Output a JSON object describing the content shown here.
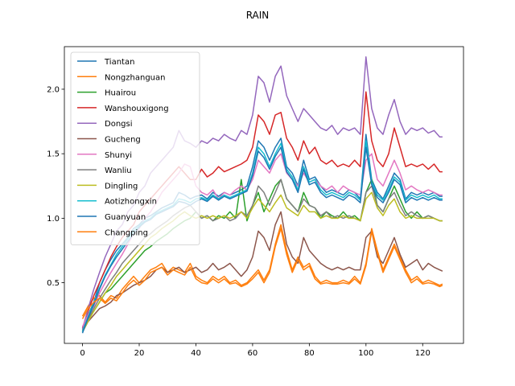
{
  "chart_data": {
    "type": "line",
    "title": "RAIN",
    "xlabel": "",
    "ylabel": "",
    "xlim": [
      -6.4,
      134.4
    ],
    "ylim": [
      0.03,
      2.33
    ],
    "x_ticks": [
      0,
      20,
      40,
      60,
      80,
      100,
      120
    ],
    "y_ticks": [
      0.5,
      1.0,
      1.5,
      2.0
    ],
    "x_tick_labels": [
      "0",
      "20",
      "40",
      "60",
      "80",
      "100",
      "120"
    ],
    "y_tick_labels": [
      "0.5",
      "1.0",
      "1.5",
      "2.0"
    ],
    "grid": false,
    "legend_position": "upper-left",
    "x": [
      0,
      2,
      4,
      6,
      8,
      10,
      12,
      14,
      16,
      18,
      20,
      22,
      24,
      26,
      28,
      30,
      32,
      34,
      36,
      38,
      40,
      42,
      44,
      46,
      48,
      50,
      52,
      54,
      56,
      58,
      60,
      62,
      64,
      66,
      68,
      70,
      72,
      74,
      76,
      78,
      80,
      82,
      84,
      86,
      88,
      90,
      92,
      94,
      96,
      98,
      100,
      102,
      104,
      106,
      108,
      110,
      112,
      114,
      116,
      118,
      120,
      122,
      124,
      126,
      127
    ],
    "series": [
      {
        "name": "Tiantan",
        "color": "#1f77b4",
        "values": [
          0.12,
          0.25,
          0.35,
          0.5,
          0.6,
          0.68,
          0.75,
          0.8,
          0.85,
          0.92,
          0.95,
          1.0,
          1.02,
          1.05,
          1.08,
          1.1,
          1.12,
          1.2,
          1.18,
          1.15,
          1.17,
          1.18,
          1.15,
          1.2,
          1.17,
          1.2,
          1.18,
          1.2,
          1.22,
          1.25,
          1.4,
          1.6,
          1.55,
          1.45,
          1.55,
          1.62,
          1.4,
          1.35,
          1.25,
          1.45,
          1.3,
          1.32,
          1.25,
          1.2,
          1.22,
          1.2,
          1.18,
          1.22,
          1.2,
          1.15,
          1.65,
          1.3,
          1.2,
          1.15,
          1.25,
          1.35,
          1.3,
          1.15,
          1.2,
          1.18,
          1.2,
          1.18,
          1.2,
          1.17,
          1.17
        ]
      },
      {
        "name": "Nongzhanguan",
        "color": "#ff7f0e",
        "values": [
          0.24,
          0.32,
          0.38,
          0.4,
          0.35,
          0.4,
          0.38,
          0.45,
          0.5,
          0.55,
          0.5,
          0.55,
          0.6,
          0.62,
          0.65,
          0.58,
          0.62,
          0.6,
          0.58,
          0.65,
          0.55,
          0.52,
          0.5,
          0.55,
          0.52,
          0.55,
          0.5,
          0.52,
          0.48,
          0.5,
          0.55,
          0.6,
          0.52,
          0.6,
          0.8,
          0.95,
          0.75,
          0.6,
          0.7,
          0.62,
          0.65,
          0.55,
          0.5,
          0.52,
          0.5,
          0.5,
          0.52,
          0.5,
          0.55,
          0.5,
          0.65,
          0.92,
          0.75,
          0.6,
          0.7,
          0.8,
          0.7,
          0.6,
          0.52,
          0.55,
          0.5,
          0.52,
          0.5,
          0.48,
          0.49
        ]
      },
      {
        "name": "Huairou",
        "color": "#2ca02c",
        "values": [
          0.13,
          0.22,
          0.28,
          0.35,
          0.42,
          0.45,
          0.5,
          0.55,
          0.6,
          0.65,
          0.7,
          0.75,
          0.78,
          0.82,
          0.85,
          0.88,
          0.92,
          0.95,
          0.98,
          1.0,
          1.05,
          1.0,
          1.02,
          0.98,
          1.02,
          1.0,
          1.05,
          1.0,
          1.3,
          0.98,
          1.1,
          1.2,
          1.05,
          1.15,
          1.25,
          1.3,
          1.15,
          1.1,
          1.05,
          1.2,
          1.1,
          1.08,
          1.0,
          1.05,
          1.02,
          1.0,
          1.05,
          1.0,
          1.02,
          0.98,
          1.2,
          1.3,
          1.1,
          1.05,
          1.15,
          1.25,
          1.15,
          1.05,
          1.0,
          1.05,
          1.0,
          1.02,
          1.0,
          0.98,
          0.98
        ]
      },
      {
        "name": "Wanshouxigong",
        "color": "#d62728",
        "values": [
          0.15,
          0.28,
          0.4,
          0.5,
          0.6,
          0.7,
          0.78,
          0.85,
          0.9,
          0.95,
          1.05,
          1.1,
          1.15,
          1.2,
          1.25,
          1.3,
          1.35,
          1.4,
          1.35,
          1.3,
          1.3,
          1.38,
          1.32,
          1.35,
          1.4,
          1.36,
          1.38,
          1.4,
          1.42,
          1.45,
          1.55,
          1.8,
          1.75,
          1.65,
          1.8,
          1.82,
          1.62,
          1.55,
          1.45,
          1.6,
          1.5,
          1.55,
          1.45,
          1.42,
          1.45,
          1.4,
          1.42,
          1.4,
          1.45,
          1.4,
          1.98,
          1.6,
          1.45,
          1.4,
          1.5,
          1.7,
          1.55,
          1.4,
          1.42,
          1.4,
          1.42,
          1.38,
          1.42,
          1.36,
          1.36
        ]
      },
      {
        "name": "Dongsi",
        "color": "#9467bd",
        "values": [
          0.14,
          0.3,
          0.45,
          0.58,
          0.7,
          0.8,
          0.9,
          0.95,
          1.05,
          1.1,
          1.2,
          1.25,
          1.35,
          1.4,
          1.45,
          1.5,
          1.55,
          1.68,
          1.6,
          1.58,
          1.55,
          1.6,
          1.58,
          1.62,
          1.6,
          1.65,
          1.62,
          1.6,
          1.68,
          1.65,
          1.8,
          2.1,
          2.05,
          1.9,
          2.1,
          2.18,
          1.95,
          1.85,
          1.75,
          1.85,
          1.8,
          1.75,
          1.7,
          1.68,
          1.72,
          1.65,
          1.7,
          1.68,
          1.7,
          1.65,
          2.25,
          1.85,
          1.7,
          1.65,
          1.8,
          1.92,
          1.75,
          1.65,
          1.7,
          1.68,
          1.7,
          1.66,
          1.68,
          1.63,
          1.63
        ]
      },
      {
        "name": "Gucheng",
        "color": "#8c564b",
        "values": [
          0.12,
          0.2,
          0.25,
          0.3,
          0.32,
          0.35,
          0.4,
          0.42,
          0.45,
          0.48,
          0.5,
          0.52,
          0.55,
          0.6,
          0.62,
          0.58,
          0.6,
          0.62,
          0.58,
          0.6,
          0.62,
          0.58,
          0.6,
          0.65,
          0.6,
          0.62,
          0.65,
          0.6,
          0.55,
          0.6,
          0.7,
          0.9,
          0.85,
          0.75,
          0.95,
          1.05,
          0.8,
          0.7,
          0.65,
          0.85,
          0.75,
          0.7,
          0.65,
          0.62,
          0.6,
          0.62,
          0.6,
          0.62,
          0.6,
          0.6,
          0.85,
          0.9,
          0.7,
          0.65,
          0.75,
          0.85,
          0.72,
          0.62,
          0.65,
          0.68,
          0.6,
          0.65,
          0.62,
          0.6,
          0.59
        ]
      },
      {
        "name": "Shunyi",
        "color": "#e377c2",
        "values": [
          0.16,
          0.25,
          0.32,
          0.42,
          0.5,
          0.58,
          0.65,
          0.72,
          0.8,
          0.88,
          0.92,
          1.0,
          1.05,
          1.12,
          1.2,
          1.25,
          1.3,
          1.35,
          1.42,
          1.4,
          1.25,
          1.2,
          1.18,
          1.22,
          1.15,
          1.2,
          1.18,
          1.22,
          1.25,
          1.22,
          1.3,
          1.45,
          1.4,
          1.35,
          1.45,
          1.5,
          1.35,
          1.3,
          1.25,
          1.35,
          1.28,
          1.3,
          1.25,
          1.22,
          1.25,
          1.2,
          1.25,
          1.22,
          1.2,
          1.18,
          1.45,
          1.5,
          1.3,
          1.25,
          1.35,
          1.45,
          1.35,
          1.22,
          1.25,
          1.22,
          1.2,
          1.22,
          1.2,
          1.18,
          1.18
        ]
      },
      {
        "name": "Wanliu",
        "color": "#7f7f7f",
        "values": [
          0.13,
          0.22,
          0.3,
          0.38,
          0.45,
          0.52,
          0.58,
          0.65,
          0.7,
          0.75,
          0.8,
          0.85,
          0.88,
          0.92,
          0.95,
          0.98,
          1.02,
          1.05,
          1.08,
          1.1,
          1.05,
          1.0,
          1.02,
          0.98,
          1.0,
          1.02,
          0.98,
          1.0,
          1.05,
          1.02,
          1.1,
          1.25,
          1.2,
          1.1,
          1.2,
          1.3,
          1.15,
          1.1,
          1.05,
          1.15,
          1.1,
          1.08,
          1.02,
          1.05,
          1.0,
          1.02,
          1.0,
          1.02,
          1.0,
          0.98,
          1.2,
          1.25,
          1.1,
          1.05,
          1.15,
          1.2,
          1.1,
          1.02,
          1.05,
          1.02,
          1.0,
          1.02,
          1.0,
          0.98,
          0.98
        ]
      },
      {
        "name": "Dingling",
        "color": "#bcbd22",
        "values": [
          0.12,
          0.2,
          0.28,
          0.35,
          0.42,
          0.48,
          0.55,
          0.6,
          0.65,
          0.7,
          0.75,
          0.8,
          0.85,
          0.88,
          0.92,
          0.95,
          0.98,
          1.02,
          1.05,
          1.02,
          1.0,
          1.02,
          1.0,
          1.02,
          1.0,
          1.02,
          1.0,
          1.02,
          1.05,
          1.0,
          1.08,
          1.15,
          1.1,
          1.05,
          1.12,
          1.18,
          1.08,
          1.05,
          1.02,
          1.1,
          1.05,
          1.05,
          1.0,
          1.02,
          1.0,
          1.0,
          1.02,
          1.0,
          1.0,
          0.98,
          1.15,
          1.2,
          1.08,
          1.02,
          1.1,
          1.15,
          1.05,
          1.0,
          1.02,
          1.0,
          1.0,
          1.0,
          1.0,
          0.98,
          0.98
        ]
      },
      {
        "name": "Aotizhongxin",
        "color": "#17becf",
        "values": [
          0.12,
          0.24,
          0.34,
          0.46,
          0.56,
          0.64,
          0.72,
          0.78,
          0.84,
          0.9,
          0.94,
          0.98,
          1.0,
          1.04,
          1.06,
          1.08,
          1.1,
          1.15,
          1.14,
          1.12,
          1.15,
          1.16,
          1.14,
          1.18,
          1.15,
          1.18,
          1.16,
          1.18,
          1.2,
          1.22,
          1.35,
          1.55,
          1.5,
          1.4,
          1.5,
          1.58,
          1.38,
          1.32,
          1.22,
          1.4,
          1.28,
          1.3,
          1.22,
          1.18,
          1.2,
          1.18,
          1.16,
          1.2,
          1.18,
          1.14,
          1.6,
          1.28,
          1.18,
          1.14,
          1.22,
          1.32,
          1.28,
          1.14,
          1.18,
          1.16,
          1.18,
          1.16,
          1.18,
          1.15,
          1.15
        ]
      },
      {
        "name": "Guanyuan",
        "color": "#1f77b4",
        "values": [
          0.11,
          0.23,
          0.33,
          0.45,
          0.55,
          0.63,
          0.7,
          0.76,
          0.82,
          0.88,
          0.93,
          0.97,
          0.99,
          1.03,
          1.05,
          1.07,
          1.09,
          1.13,
          1.12,
          1.1,
          1.13,
          1.15,
          1.13,
          1.17,
          1.14,
          1.17,
          1.15,
          1.17,
          1.19,
          1.21,
          1.33,
          1.52,
          1.47,
          1.38,
          1.48,
          1.55,
          1.36,
          1.3,
          1.2,
          1.38,
          1.26,
          1.28,
          1.2,
          1.16,
          1.18,
          1.16,
          1.14,
          1.18,
          1.16,
          1.12,
          1.55,
          1.26,
          1.16,
          1.12,
          1.2,
          1.3,
          1.26,
          1.12,
          1.16,
          1.14,
          1.16,
          1.14,
          1.16,
          1.14,
          1.14
        ]
      },
      {
        "name": "Changping",
        "color": "#ff7f0e",
        "values": [
          0.22,
          0.3,
          0.35,
          0.38,
          0.34,
          0.38,
          0.36,
          0.42,
          0.48,
          0.52,
          0.48,
          0.52,
          0.58,
          0.6,
          0.62,
          0.56,
          0.6,
          0.58,
          0.56,
          0.62,
          0.53,
          0.5,
          0.49,
          0.53,
          0.5,
          0.53,
          0.49,
          0.5,
          0.47,
          0.49,
          0.53,
          0.58,
          0.5,
          0.58,
          0.78,
          0.92,
          0.72,
          0.58,
          0.68,
          0.6,
          0.63,
          0.53,
          0.49,
          0.5,
          0.49,
          0.49,
          0.5,
          0.49,
          0.53,
          0.49,
          0.63,
          0.9,
          0.73,
          0.58,
          0.68,
          0.78,
          0.68,
          0.58,
          0.5,
          0.53,
          0.49,
          0.5,
          0.49,
          0.47,
          0.48
        ]
      }
    ]
  }
}
